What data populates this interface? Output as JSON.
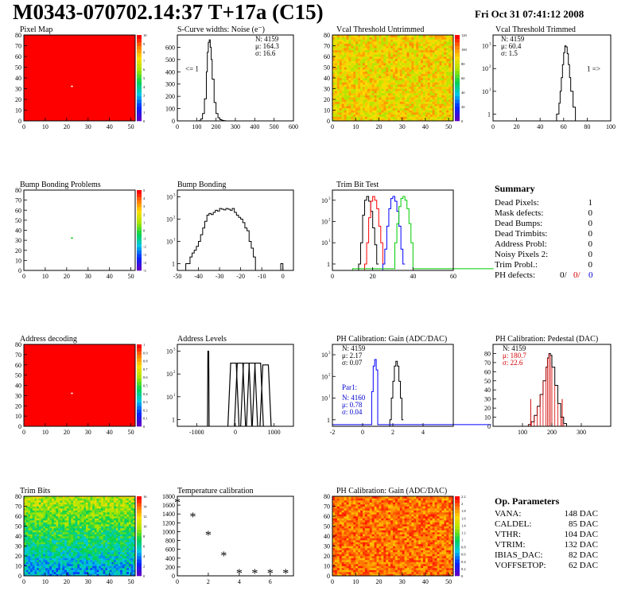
{
  "header": {
    "title": "M0343-070702.14:37 T+17a (C15)",
    "date": "Fri Oct 31 07:41:12 2008"
  },
  "colors": {
    "pixel_map_fill": "#ff0000",
    "green": "#00cc00",
    "red": "#d40000",
    "blue": "#0000cc"
  },
  "chart_data": [
    {
      "id": "pixel-map",
      "type": "heatmap",
      "title": "Pixel Map",
      "xlim": [
        0,
        52
      ],
      "ylim": [
        0,
        80
      ],
      "xticks": [
        0,
        10,
        20,
        30,
        40,
        50
      ],
      "yticks": [
        0,
        10,
        20,
        30,
        40,
        50,
        60,
        70,
        80
      ],
      "palette_ticks": [
        0,
        1,
        2,
        3,
        4,
        5,
        6,
        7,
        8,
        9,
        10
      ],
      "fill": "red",
      "dead_pixels": [
        [
          22,
          32
        ]
      ]
    },
    {
      "id": "scurve",
      "type": "line",
      "title": "S-Curve widths: Noise (e⁻)",
      "xlim": [
        0,
        600
      ],
      "ylim": [
        0,
        700
      ],
      "xticks": [
        0,
        100,
        200,
        300,
        400,
        500,
        600
      ],
      "yticks": [
        0,
        100,
        200,
        300,
        400,
        500,
        600
      ],
      "x": [
        90,
        110,
        120,
        130,
        140,
        150,
        155,
        160,
        165,
        170,
        175,
        180,
        190,
        200,
        210,
        220,
        230,
        240,
        250
      ],
      "y": [
        0,
        2,
        15,
        60,
        180,
        400,
        560,
        640,
        660,
        600,
        500,
        340,
        150,
        60,
        25,
        10,
        4,
        2,
        0
      ],
      "stats": [
        "N: 4159",
        "μ: 164.3",
        "σ: 16.6"
      ],
      "annotation": "<= 1"
    },
    {
      "id": "vcal-untrimmed",
      "type": "heatmap",
      "title": "Vcal Threshold Untrimmed",
      "xlim": [
        0,
        52
      ],
      "ylim": [
        0,
        80
      ],
      "xticks": [
        0,
        10,
        20,
        30,
        40,
        50
      ],
      "yticks": [
        0,
        10,
        20,
        30,
        40,
        50,
        60,
        70,
        80
      ],
      "palette_ticks": [
        0,
        20,
        40,
        60,
        80,
        100,
        120
      ],
      "value_range": [
        60,
        110
      ]
    },
    {
      "id": "vcal-trimmed",
      "type": "line",
      "title": "Vcal Threshold Trimmed",
      "log_y": true,
      "xlim": [
        0,
        100
      ],
      "ylim": [
        0.5,
        3000
      ],
      "xticks": [
        0,
        20,
        40,
        60,
        80,
        100
      ],
      "yticks": [
        1,
        10,
        100,
        1000
      ],
      "x": [
        52,
        54,
        56,
        57,
        58,
        59,
        60,
        61,
        62,
        63,
        64,
        65,
        66,
        68,
        70
      ],
      "y": [
        0.5,
        1,
        3,
        10,
        40,
        150,
        500,
        1000,
        900,
        450,
        150,
        40,
        10,
        2,
        0.5
      ],
      "stats": [
        "N: 4159",
        "μ: 60.4",
        "σ:  1.5"
      ],
      "annotation": "1 =>"
    },
    {
      "id": "bump-problems",
      "type": "heatmap",
      "title": "Bump Bonding Problems",
      "xlim": [
        0,
        52
      ],
      "ylim": [
        0,
        80
      ],
      "xticks": [
        0,
        10,
        20,
        30,
        40,
        50
      ],
      "yticks": [
        0,
        10,
        20,
        30,
        40,
        50,
        60,
        70,
        80
      ],
      "palette_ticks": [
        -5,
        -4,
        -3,
        -2,
        -1,
        0,
        1,
        2,
        3,
        4,
        5
      ],
      "fill": "white",
      "marked_pixels": [
        [
          22,
          32
        ]
      ]
    },
    {
      "id": "bump-bonding",
      "type": "line",
      "title": "Bump Bonding",
      "log_y": true,
      "xlim": [
        -50,
        5
      ],
      "ylim": [
        0.5,
        2000
      ],
      "xticks": [
        -50,
        -40,
        -30,
        -20,
        -10,
        0
      ],
      "yticks": [
        1,
        10,
        100,
        1000
      ],
      "x": [
        -47,
        -46,
        -45,
        -44,
        -43,
        -42,
        -41,
        -40,
        -39,
        -38,
        -37,
        -36,
        -35,
        -34,
        -33,
        -32,
        -31,
        -30,
        -29,
        -28,
        -27,
        -26,
        -25,
        -24,
        -23,
        -22,
        -21,
        -20,
        -19,
        -18,
        -17,
        -16,
        -15,
        -14,
        -13,
        -1,
        0
      ],
      "y": [
        0.5,
        1,
        1,
        2,
        3,
        4,
        6,
        10,
        20,
        40,
        80,
        150,
        180,
        160,
        200,
        250,
        230,
        300,
        280,
        260,
        300,
        280,
        250,
        300,
        200,
        150,
        120,
        100,
        70,
        40,
        30,
        10,
        5,
        2,
        0.5,
        1,
        0.5
      ],
      "stats": []
    },
    {
      "id": "trim-bit-test",
      "type": "line",
      "title": "Trim Bit Test",
      "log_y": true,
      "xlim": [
        0,
        60
      ],
      "ylim": [
        0.5,
        3000
      ],
      "xticks": [
        0,
        20,
        40,
        60
      ],
      "yticks": [
        1,
        10,
        100,
        1000
      ],
      "series": [
        {
          "color": "#000000",
          "x": [
            13,
            14,
            15,
            16,
            17,
            18,
            19,
            20,
            21,
            22
          ],
          "y": [
            1,
            10,
            200,
            1000,
            1500,
            900,
            300,
            50,
            8,
            1
          ]
        },
        {
          "color": "#ff0000",
          "x": [
            16,
            17,
            18,
            19,
            20,
            21,
            22,
            23,
            24,
            25
          ],
          "y": [
            1,
            10,
            150,
            900,
            1500,
            1000,
            400,
            60,
            10,
            1
          ]
        },
        {
          "color": "#0000ff",
          "x": [
            25,
            26,
            27,
            28,
            29,
            30,
            31,
            32,
            33,
            34,
            35
          ],
          "y": [
            1,
            5,
            60,
            400,
            1200,
            1500,
            900,
            300,
            60,
            5,
            1
          ]
        },
        {
          "color": "#00cc00",
          "x": [
            10,
            30,
            31,
            32,
            33,
            34,
            35,
            36,
            37,
            38,
            39,
            40,
            60
          ],
          "y": [
            0.6,
            0.6,
            10,
            80,
            500,
            1200,
            1500,
            1000,
            400,
            80,
            10,
            0.6,
            0.6
          ]
        }
      ]
    },
    {
      "id": "address-decoding",
      "type": "heatmap",
      "title": "Address decoding",
      "xlim": [
        0,
        52
      ],
      "ylim": [
        0,
        80
      ],
      "xticks": [
        0,
        10,
        20,
        30,
        40,
        50
      ],
      "yticks": [
        0,
        10,
        20,
        30,
        40,
        50,
        60,
        70,
        80
      ],
      "palette_ticks": [
        0,
        0.1,
        0.2,
        0.3,
        0.4,
        0.5,
        0.6,
        0.7,
        0.8,
        0.9,
        1
      ],
      "fill": "red",
      "dead_pixels": [
        [
          22,
          32
        ]
      ]
    },
    {
      "id": "address-levels",
      "type": "line",
      "title": "Address Levels",
      "log_y": true,
      "xlim": [
        -1500,
        1500
      ],
      "ylim": [
        0.5,
        2000
      ],
      "xticks": [
        -1000,
        0,
        1000
      ],
      "yticks": [
        1,
        10,
        100,
        1000
      ],
      "peaks": [
        {
          "x": -700,
          "h": 1000
        },
        {
          "x": -50,
          "h": 300
        },
        {
          "x": 120,
          "h": 300
        },
        {
          "x": 280,
          "h": 300
        },
        {
          "x": 430,
          "h": 300
        },
        {
          "x": 580,
          "h": 300
        },
        {
          "x": 780,
          "h": 250
        }
      ],
      "stats": []
    },
    {
      "id": "ph-gain",
      "type": "line",
      "title": "PH Calibration: Gain (ADC/DAC)",
      "log_y": true,
      "xlim": [
        -2,
        6
      ],
      "ylim": [
        0.5,
        3000
      ],
      "xticks": [
        -2,
        0,
        2,
        4
      ],
      "yticks": [
        1,
        10,
        100,
        1000
      ],
      "series": [
        {
          "color": "#000000",
          "x": [
            1.8,
            1.9,
            2.0,
            2.1,
            2.2,
            2.3,
            2.4,
            2.5,
            2.6
          ],
          "y": [
            1,
            10,
            60,
            300,
            500,
            300,
            60,
            10,
            1
          ]
        },
        {
          "color": "#0000ff",
          "x": [
            -2,
            0.5,
            0.6,
            0.7,
            0.8,
            0.9,
            1.0,
            6
          ],
          "y": [
            0.6,
            0.6,
            20,
            300,
            600,
            200,
            0.6,
            0.6
          ]
        }
      ],
      "stats": [
        "N: 4159",
        "μ: 2.17",
        "σ: 0.07"
      ],
      "stats2": {
        "label": "Par1:",
        "lines": [
          "N: 4160",
          "μ: 0.78",
          "σ: 0.04"
        ]
      }
    },
    {
      "id": "ph-pedestal",
      "type": "line",
      "title": "PH Calibration: Pedestal (DAC)",
      "xlim": [
        0,
        400
      ],
      "ylim": [
        0,
        90
      ],
      "xticks": [
        100,
        200,
        300
      ],
      "yticks": [
        0,
        10,
        20,
        30,
        40,
        50,
        60,
        70,
        80
      ],
      "x": [
        110,
        120,
        130,
        140,
        150,
        160,
        170,
        180,
        185,
        190,
        195,
        200,
        210,
        220,
        230,
        240,
        250
      ],
      "y": [
        0,
        2,
        5,
        12,
        22,
        35,
        50,
        65,
        75,
        80,
        78,
        65,
        45,
        25,
        10,
        3,
        0
      ],
      "stats": [
        "N: 4159",
        "μ: 180.7",
        "σ: 22.6"
      ]
    },
    {
      "id": "trim-bits",
      "type": "heatmap",
      "title": "Trim Bits",
      "xlim": [
        0,
        52
      ],
      "ylim": [
        0,
        80
      ],
      "xticks": [
        0,
        10,
        20,
        30,
        40,
        50
      ],
      "yticks": [
        0,
        10,
        20,
        30,
        40,
        50,
        60,
        70,
        80
      ],
      "palette_ticks": [
        0,
        2,
        4,
        6,
        8,
        10,
        12,
        14,
        16
      ],
      "value_range": [
        3,
        11
      ]
    },
    {
      "id": "temperature",
      "type": "scatter",
      "title": "Temperature calibration",
      "xlim": [
        0,
        7.5
      ],
      "ylim": [
        0,
        1800
      ],
      "xticks": [
        0,
        2,
        4,
        6
      ],
      "yticks": [
        0,
        200,
        400,
        600,
        800,
        1000,
        1200,
        1400,
        1600,
        1800
      ],
      "x": [
        0,
        1,
        2,
        3,
        4,
        5,
        6,
        7
      ],
      "y": [
        1660,
        1330,
        920,
        450,
        50,
        50,
        50,
        50
      ]
    },
    {
      "id": "ph-gain-map",
      "type": "heatmap",
      "title": "PH Calibration: Gain (ADC/DAC)",
      "xlim": [
        0,
        52
      ],
      "ylim": [
        0,
        80
      ],
      "xticks": [
        0,
        10,
        20,
        30,
        40,
        50
      ],
      "yticks": [
        0,
        10,
        20,
        30,
        40,
        50,
        60,
        70,
        80
      ],
      "palette_ticks": [
        0,
        0.2,
        0.4,
        0.6,
        0.8,
        1,
        1.2,
        1.4,
        1.6,
        1.8,
        2,
        2.2
      ],
      "value_range": [
        1.9,
        2.3
      ]
    }
  ],
  "summary": {
    "title": "Summary",
    "rows": [
      {
        "label": "Dead Pixels:",
        "value": "1"
      },
      {
        "label": "Mask defects:",
        "value": "0"
      },
      {
        "label": "Dead Bumps:",
        "value": "0"
      },
      {
        "label": "Dead Trimbits:",
        "value": "0"
      },
      {
        "label": "Address Probl:",
        "value": "0"
      },
      {
        "label": "Noisy Pixels 2:",
        "value": "0"
      },
      {
        "label": "Trim Probl.:",
        "value": "0"
      }
    ],
    "ph_label": "PH defects:",
    "ph_values": [
      "0/",
      "0/",
      "0"
    ]
  },
  "op_params": {
    "title": "Op. Parameters",
    "rows": [
      {
        "label": "VANA:",
        "value": "148 DAC"
      },
      {
        "label": "CALDEL:",
        "value": "85 DAC"
      },
      {
        "label": "VTHR:",
        "value": "104 DAC"
      },
      {
        "label": "VTRIM:",
        "value": "132 DAC"
      },
      {
        "label": "IBIAS_DAC:",
        "value": "82 DAC"
      },
      {
        "label": "VOFFSETOP:",
        "value": "62 DAC"
      }
    ]
  }
}
